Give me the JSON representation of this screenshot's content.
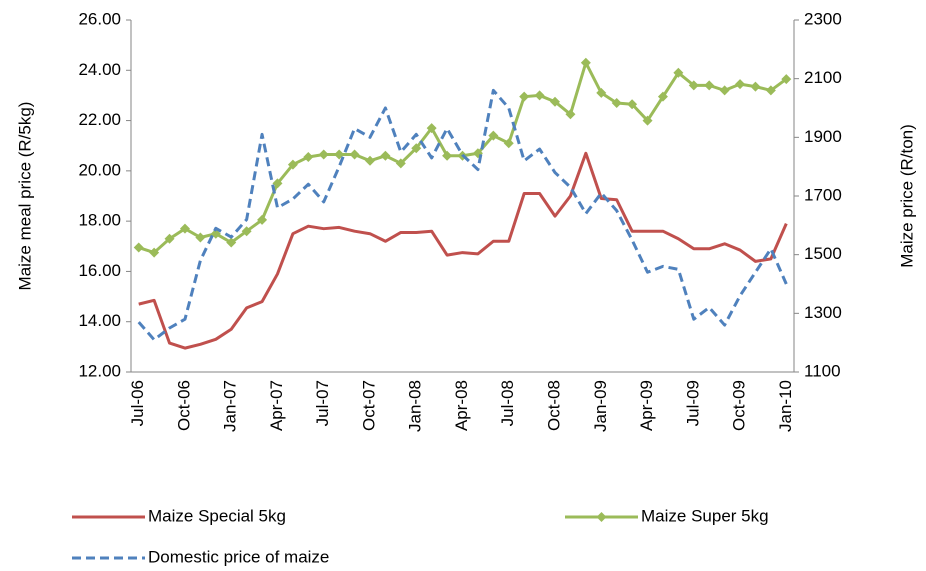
{
  "chart_data": {
    "type": "line",
    "ylabel": "Maize meal price (R/5kg)",
    "y2label": "Maize price (R/ton)",
    "categories": [
      "Jul-06",
      null,
      null,
      "Oct-06",
      null,
      null,
      "Jan-07",
      null,
      null,
      "Apr-07",
      null,
      null,
      "Jul-07",
      null,
      null,
      "Oct-07",
      null,
      null,
      "Jan-08",
      null,
      null,
      "Apr-08",
      null,
      null,
      "Jul-08",
      null,
      null,
      "Oct-08",
      null,
      null,
      "Jan-09",
      null,
      null,
      "Apr-09",
      null,
      null,
      "Jul-09",
      null,
      null,
      "Oct-09",
      null,
      null,
      "Jan-10"
    ],
    "ylim": [
      12,
      26
    ],
    "yticks": [
      {
        "value": 12,
        "label": "12.00"
      },
      {
        "value": 14,
        "label": "14.00"
      },
      {
        "value": 16,
        "label": "16.00"
      },
      {
        "value": 18,
        "label": "18.00"
      },
      {
        "value": 20,
        "label": "20.00"
      },
      {
        "value": 22,
        "label": "22.00"
      },
      {
        "value": 24,
        "label": "24.00"
      },
      {
        "value": 26,
        "label": "26.00"
      }
    ],
    "y2lim": [
      1100,
      2300
    ],
    "y2ticks": [
      1100,
      1300,
      1500,
      1700,
      1900,
      2100,
      2300
    ],
    "grid": false,
    "series": [
      {
        "name": "Maize Special 5kg",
        "color": "#c0504d",
        "dashed": false,
        "marker": "none",
        "values": [
          14.7,
          14.85,
          13.15,
          12.95,
          13.1,
          13.3,
          13.7,
          14.55,
          14.8,
          15.9,
          17.5,
          17.8,
          17.7,
          17.75,
          17.6,
          17.5,
          17.2,
          17.55,
          17.55,
          17.6,
          16.65,
          16.75,
          16.7,
          17.2,
          17.2,
          19.1,
          19.1,
          18.2,
          19.0,
          20.7,
          18.9,
          18.85,
          17.6,
          17.6,
          17.6,
          17.3,
          16.9,
          16.9,
          17.1,
          16.85,
          16.4,
          16.5,
          17.9
        ]
      },
      {
        "name": "Maize Super 5kg",
        "color": "#9bbb59",
        "dashed": false,
        "marker": "diamond",
        "values": [
          16.95,
          16.75,
          17.3,
          17.7,
          17.35,
          17.5,
          17.15,
          17.6,
          18.05,
          19.5,
          20.25,
          20.55,
          20.65,
          20.65,
          20.65,
          20.4,
          20.6,
          20.3,
          20.9,
          21.7,
          20.6,
          20.6,
          20.7,
          21.4,
          21.1,
          22.95,
          23.0,
          22.75,
          22.25,
          24.3,
          23.1,
          22.7,
          22.65,
          22.0,
          22.95,
          23.9,
          23.4,
          23.4,
          23.2,
          23.45,
          23.35,
          23.2,
          23.65
        ]
      },
      {
        "name": "Domestic price of maize",
        "color": "#4f81bd",
        "dashed": true,
        "marker": "none",
        "axis": "y2",
        "values": [
          1270,
          1210,
          1250,
          1280,
          1480,
          1590,
          1560,
          1620,
          1910,
          1660,
          1690,
          1740,
          1680,
          1800,
          1930,
          1900,
          2000,
          1850,
          1910,
          1830,
          1930,
          1840,
          1790,
          2060,
          2000,
          1820,
          1860,
          1780,
          1730,
          1640,
          1710,
          1650,
          1550,
          1440,
          1460,
          1450,
          1280,
          1320,
          1260,
          1360,
          1440,
          1520,
          1400
        ]
      }
    ]
  }
}
